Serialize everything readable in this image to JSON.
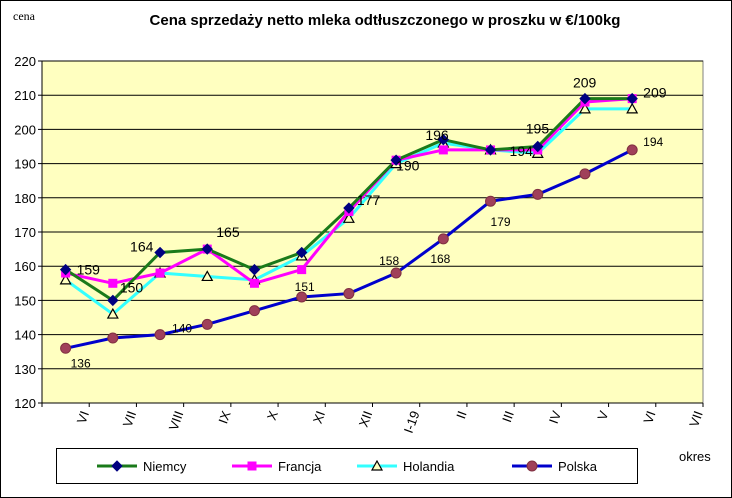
{
  "chart_data": {
    "type": "line",
    "title": "Cena sprzedaży netto mleka  odtłuszczonego w proszku w €/100kg",
    "ylabel": "cena",
    "xlabel": "okres",
    "ylim": [
      120,
      220
    ],
    "yticks": [
      120,
      130,
      140,
      150,
      160,
      170,
      180,
      190,
      200,
      210,
      220
    ],
    "categories": [
      "VI",
      "VII",
      "VIII",
      "IX",
      "X",
      "XI",
      "XII",
      "I-19",
      "II",
      "III",
      "IV",
      "V",
      "VI",
      "VII"
    ],
    "grid": true,
    "legend_position": "bottom",
    "series": [
      {
        "name": "Niemcy",
        "color": "#1a7a1a",
        "marker": "diamond",
        "values": [
          159,
          150,
          164,
          165,
          159,
          164,
          177,
          191,
          197,
          194,
          195,
          209,
          209,
          null
        ]
      },
      {
        "name": "Francja",
        "color": "#ff00ff",
        "marker": "square",
        "values": [
          158,
          155,
          158,
          165,
          155,
          159,
          176,
          191,
          194,
          194,
          194,
          208,
          209,
          null
        ]
      },
      {
        "name": "Holandia",
        "color": "#33ffff",
        "marker": "triangle",
        "values": [
          156,
          146,
          158,
          157,
          156,
          163,
          174,
          190,
          196,
          194,
          193,
          206,
          206,
          null
        ]
      },
      {
        "name": "Polska",
        "color": "#0000cc",
        "marker": "circle",
        "values": [
          136,
          139,
          140,
          143,
          147,
          151,
          152,
          158,
          168,
          179,
          181,
          187,
          194,
          null
        ]
      }
    ],
    "annotations": [
      {
        "text": "159",
        "series": 0,
        "index": 0,
        "dx": 11,
        "dy": 0
      },
      {
        "text": "150",
        "series": 0,
        "index": 1,
        "dx": 7,
        "dy": -13
      },
      {
        "text": "164",
        "series": 0,
        "index": 2,
        "dx": -30,
        "dy": -6
      },
      {
        "text": "165",
        "series": 0,
        "index": 3,
        "dx": 9,
        "dy": -17
      },
      {
        "text": "177",
        "series": 0,
        "index": 6,
        "dx": 8,
        "dy": -8
      },
      {
        "text": "190",
        "series": 2,
        "index": 7,
        "dx": 0,
        "dy": 2
      },
      {
        "text": "196",
        "series": 2,
        "index": 8,
        "dx": -18,
        "dy": -8
      },
      {
        "text": "194",
        "series": 0,
        "index": 9,
        "dx": 19,
        "dy": 1
      },
      {
        "text": "195",
        "series": 0,
        "index": 10,
        "dx": -12,
        "dy": -18
      },
      {
        "text": "209",
        "series": 0,
        "index": 11,
        "dx": -12,
        "dy": -16
      },
      {
        "text": "209",
        "series": 0,
        "index": 12,
        "dx": 11,
        "dy": -6
      },
      {
        "text": "136",
        "series": 3,
        "index": 0,
        "dx": 5,
        "dy": 14
      },
      {
        "text": "140",
        "series": 3,
        "index": 2,
        "dx": 12,
        "dy": -7
      },
      {
        "text": "151",
        "series": 3,
        "index": 5,
        "dx": -7,
        "dy": -11
      },
      {
        "text": "158",
        "series": 3,
        "index": 7,
        "dx": -17,
        "dy": -13
      },
      {
        "text": "168",
        "series": 3,
        "index": 8,
        "dx": -13,
        "dy": 19
      },
      {
        "text": "179",
        "series": 3,
        "index": 9,
        "dx": 0,
        "dy": 20
      },
      {
        "text": "194",
        "series": 3,
        "index": 12,
        "dx": 11,
        "dy": -9
      }
    ]
  }
}
